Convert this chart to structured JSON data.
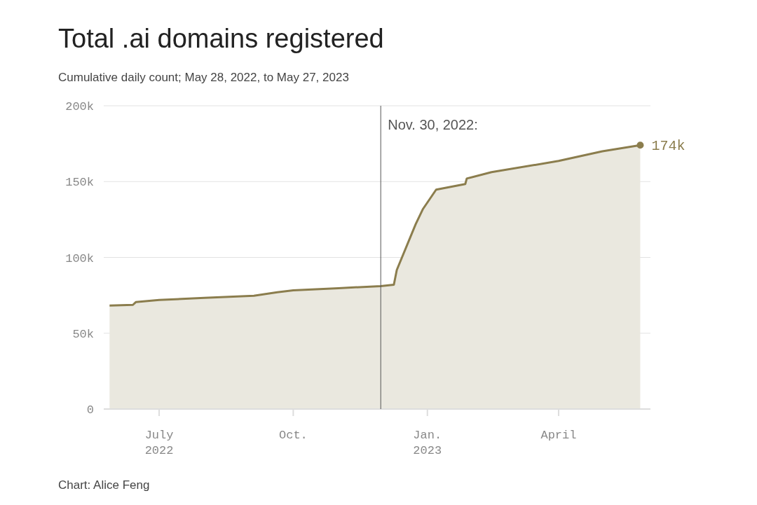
{
  "chart_data": {
    "type": "area",
    "title": "Total .ai domains registered",
    "subtitle": "Cumulative daily count; May 28, 2022, to May 27, 2023",
    "annotations": [
      "Chart: Alice Feng"
    ],
    "x": [
      "2022-05-28",
      "2022-06-13",
      "2022-06-15",
      "2022-07-01",
      "2022-08-01",
      "2022-09-04",
      "2022-09-20",
      "2022-10-01",
      "2022-11-01",
      "2022-11-30",
      "2022-12-09",
      "2022-12-11",
      "2022-12-24",
      "2022-12-29",
      "2023-01-07",
      "2023-01-27",
      "2023-01-28",
      "2023-02-14",
      "2023-04-01",
      "2023-05-01",
      "2023-05-27"
    ],
    "series": [
      {
        "color": "#8b7d4d",
        "values": [
          68.2,
          68.7,
          70.5,
          71.9,
          73.3,
          74.7,
          77,
          78.3,
          79.7,
          81.1,
          82,
          91.7,
          122,
          132,
          144.7,
          148.4,
          152,
          156.2,
          163.6,
          170,
          174
        ],
        "value_labels": [
          null,
          null,
          null,
          null,
          null,
          null,
          null,
          null,
          null,
          null,
          null,
          null,
          null,
          null,
          null,
          null,
          null,
          null,
          null,
          null,
          "174k"
        ]
      }
    ],
    "xlim": [
      "2022-05-24",
      "2023-06-03"
    ],
    "xticks": [
      {
        "value": "2022-07-01",
        "label": "July 2022"
      },
      {
        "value": "2022-10-01",
        "label": "Oct."
      },
      {
        "value": "2023-01-01",
        "label": "Jan. 2023"
      },
      {
        "value": "2023-04-01",
        "label": "April"
      }
    ],
    "ylim": [
      0,
      200
    ],
    "yticks": [
      0,
      {
        "value": 50,
        "label": "50k"
      },
      {
        "value": 100,
        "label": "100k"
      },
      {
        "value": 150,
        "label": "150k"
      },
      {
        "value": 200,
        "label": "200k"
      }
    ],
    "grid": "y",
    "ref_lines": [
      {
        "axis": "x",
        "value": "2022-11-30",
        "label": "Nov. 30, 2022:",
        "color": "#555555"
      }
    ]
  }
}
